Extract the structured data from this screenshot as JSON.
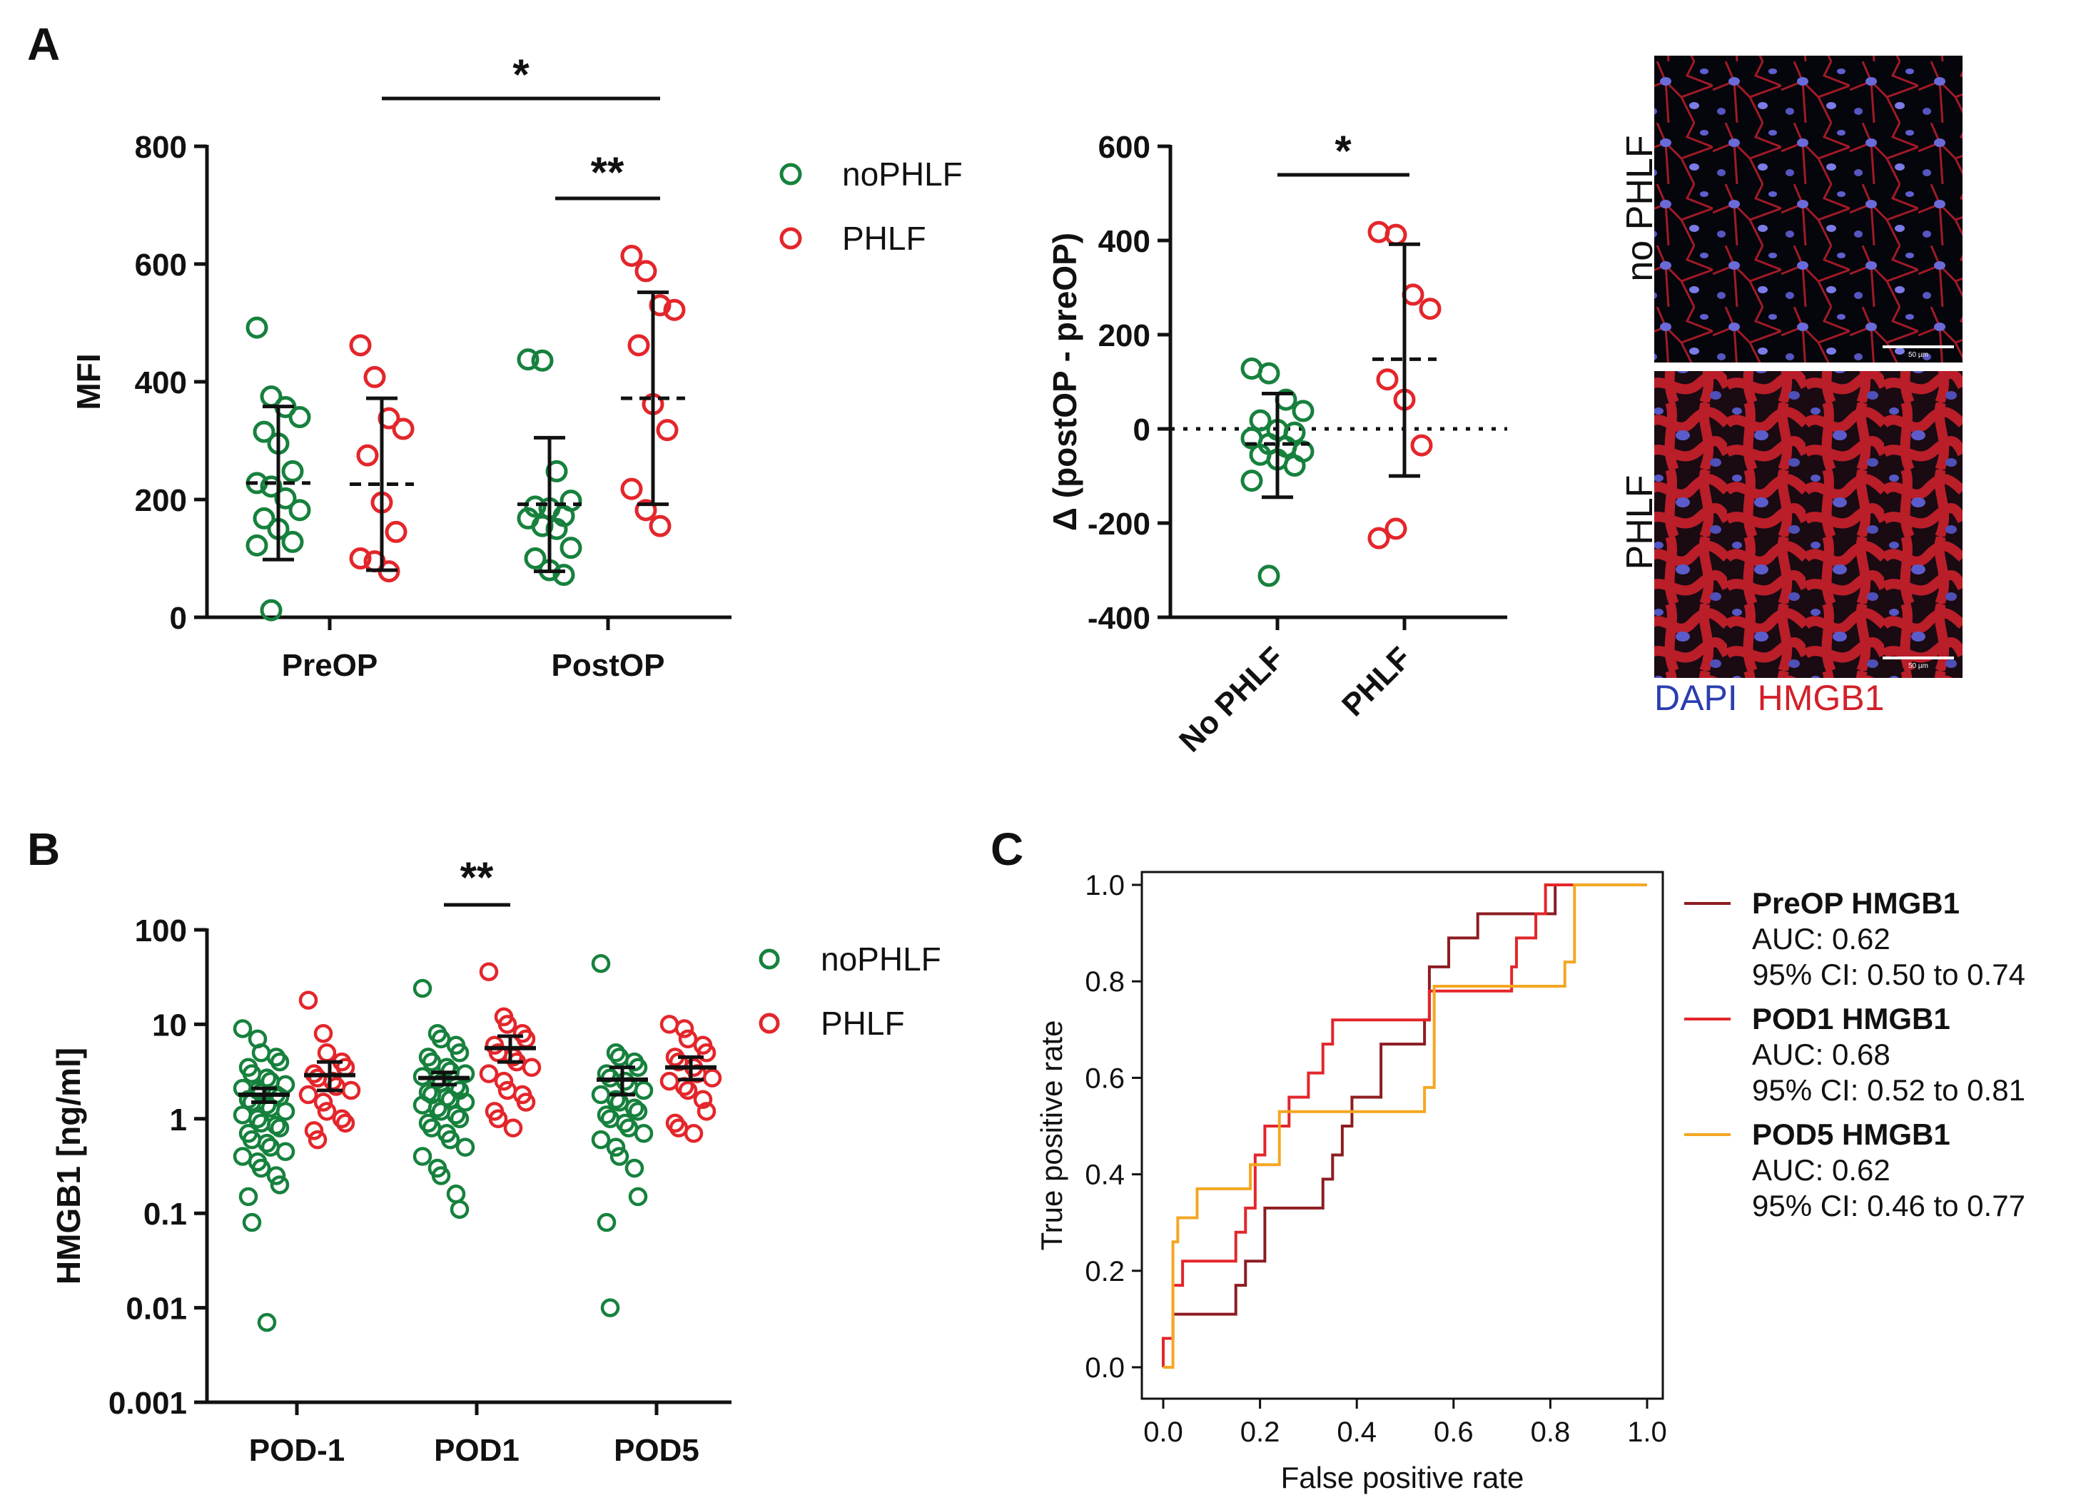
{
  "colors": {
    "green": "#16813d",
    "red": "#e3262b",
    "black": "#111111",
    "roc_preop": "#8c1d22",
    "roc_pod1": "#e3262b",
    "roc_pod5": "#f4a722",
    "dapi": "#2b3eb0",
    "hmgb1": "#d3202a"
  },
  "panels": {
    "a": "A",
    "b": "B",
    "c": "C"
  },
  "chart_data": [
    {
      "id": "a-mfi",
      "type": "scatter",
      "ylabel": "MFI",
      "ylim": [
        0,
        800
      ],
      "yticks": [
        "0",
        "200",
        "400",
        "600",
        "800"
      ],
      "categories": [
        "PreOP",
        "PostOP"
      ],
      "legend": [
        "noPHLF",
        "PHLF"
      ],
      "legend_position": "right",
      "series": [
        {
          "name": "noPHLF",
          "group": "PreOP",
          "mean": 228,
          "sd_low": 98,
          "sd_high": 358,
          "values": [
            492,
            375,
            357,
            340,
            315,
            295,
            248,
            228,
            222,
            202,
            182,
            168,
            150,
            128,
            122,
            12
          ]
        },
        {
          "name": "PHLF",
          "group": "PreOP",
          "mean": 226,
          "sd_low": 80,
          "sd_high": 372,
          "values": [
            462,
            408,
            338,
            320,
            275,
            195,
            145,
            100,
            95,
            78
          ]
        },
        {
          "name": "noPHLF",
          "group": "PostOP",
          "mean": 192,
          "sd_low": 78,
          "sd_high": 305,
          "values": [
            438,
            436,
            248,
            198,
            188,
            185,
            172,
            168,
            155,
            150,
            118,
            100,
            80,
            72
          ]
        },
        {
          "name": "PHLF",
          "group": "PostOP",
          "mean": 372,
          "sd_low": 192,
          "sd_high": 552,
          "values": [
            614,
            588,
            530,
            522,
            462,
            362,
            318,
            218,
            182,
            155
          ]
        }
      ],
      "significance": [
        {
          "label": "*",
          "from": "PreOP (PHLF)",
          "to": "PostOP (PHLF)"
        },
        {
          "label": "**",
          "from": "PostOP (noPHLF)",
          "to": "PostOP (PHLF)"
        }
      ]
    },
    {
      "id": "a-delta",
      "type": "scatter",
      "ylabel": "Δ (postOP - preOP)",
      "ylim": [
        -400,
        600
      ],
      "yticks": [
        "-400",
        "-200",
        "0",
        "200",
        "400",
        "600"
      ],
      "categories": [
        "No PHLF",
        "PHLF"
      ],
      "series": [
        {
          "name": "No PHLF",
          "mean": -32,
          "sd_low": -145,
          "sd_high": 75,
          "values": [
            128,
            118,
            62,
            38,
            18,
            -2,
            -8,
            -20,
            -32,
            -38,
            -48,
            -55,
            -65,
            -78,
            -110,
            -312
          ]
        },
        {
          "name": "PHLF",
          "mean": 148,
          "sd_low": -100,
          "sd_high": 392,
          "values": [
            418,
            412,
            285,
            255,
            105,
            62,
            -35,
            -232,
            -212
          ]
        }
      ],
      "reference_line": 0,
      "significance": [
        {
          "label": "*",
          "from": "No PHLF",
          "to": "PHLF"
        }
      ]
    },
    {
      "id": "b-hmgb1",
      "type": "scatter",
      "ylabel": "HMGB1 [ng/ml]",
      "yscale": "log",
      "ylim": [
        0.001,
        100
      ],
      "yticks": [
        "0.001",
        "0.01",
        "0.1",
        "1",
        "10",
        "100"
      ],
      "categories": [
        "POD-1",
        "POD1",
        "POD5"
      ],
      "legend": [
        "noPHLF",
        "PHLF"
      ],
      "legend_position": "right",
      "series": [
        {
          "name": "noPHLF",
          "group": "POD-1",
          "mean": 1.8,
          "sem_low": 1.5,
          "sem_high": 2.1,
          "values": [
            9,
            7,
            5,
            4.5,
            4,
            3.5,
            3,
            2.7,
            2.5,
            2.3,
            2.1,
            2,
            1.9,
            1.8,
            1.7,
            1.6,
            1.5,
            1.4,
            1.3,
            1.2,
            1.1,
            1,
            0.9,
            0.85,
            0.8,
            0.7,
            0.6,
            0.55,
            0.5,
            0.45,
            0.4,
            0.35,
            0.3,
            0.25,
            0.2,
            0.15,
            0.08,
            0.007
          ]
        },
        {
          "name": "PHLF",
          "group": "POD-1",
          "mean": 2.9,
          "sem_low": 2.0,
          "sem_high": 4.0,
          "values": [
            18,
            8,
            5,
            4,
            3.5,
            3,
            2.7,
            2.5,
            2.2,
            2,
            1.8,
            1.5,
            1.2,
            1,
            0.9,
            0.75,
            0.6
          ]
        },
        {
          "name": "noPHLF",
          "group": "POD1",
          "mean": 2.7,
          "sem_low": 2.3,
          "sem_high": 3.1,
          "values": [
            24,
            8,
            7,
            6,
            5,
            4.5,
            4,
            3.5,
            3.2,
            3,
            2.8,
            2.6,
            2.4,
            2.2,
            2,
            1.9,
            1.8,
            1.7,
            1.6,
            1.5,
            1.4,
            1.3,
            1.2,
            1.1,
            1,
            0.9,
            0.8,
            0.7,
            0.6,
            0.5,
            0.4,
            0.3,
            0.25,
            0.16,
            0.11
          ]
        },
        {
          "name": "PHLF",
          "group": "POD1",
          "mean": 5.6,
          "sem_low": 4.0,
          "sem_high": 7.5,
          "values": [
            36,
            12,
            10,
            8,
            7,
            6,
            5,
            4.5,
            4,
            3.5,
            3,
            2.5,
            2,
            1.8,
            1.5,
            1.2,
            1,
            0.8
          ]
        },
        {
          "name": "noPHLF",
          "group": "POD5",
          "mean": 2.6,
          "sem_low": 1.8,
          "sem_high": 3.5,
          "values": [
            44,
            5,
            4.5,
            4,
            3.5,
            3,
            2.7,
            2.5,
            2.2,
            2,
            1.8,
            1.6,
            1.5,
            1.3,
            1.2,
            1.1,
            1,
            0.9,
            0.8,
            0.7,
            0.6,
            0.5,
            0.4,
            0.3,
            0.15,
            0.08,
            0.01
          ]
        },
        {
          "name": "PHLF",
          "group": "POD5",
          "mean": 3.5,
          "sem_low": 2.6,
          "sem_high": 4.5,
          "values": [
            10,
            9,
            7,
            6,
            5,
            4.5,
            4,
            3.5,
            3,
            2.7,
            2.5,
            2.2,
            2,
            1.6,
            1.2,
            0.9,
            0.8,
            0.7
          ]
        }
      ],
      "significance": [
        {
          "label": "**",
          "from": "POD1 (noPHLF)",
          "to": "POD1 (PHLF)"
        }
      ]
    },
    {
      "id": "c-roc",
      "type": "line",
      "xlabel": "False positive rate",
      "ylabel": "True positive rate",
      "xlim": [
        0,
        1
      ],
      "ylim": [
        0,
        1
      ],
      "xticks": [
        "0.0",
        "0.2",
        "0.4",
        "0.6",
        "0.8",
        "1.0"
      ],
      "yticks": [
        "0.0",
        "0.2",
        "0.4",
        "0.6",
        "0.8",
        "1.0"
      ],
      "legend_position": "right",
      "series": [
        {
          "name": "PreOP HMGB1",
          "auc": "AUC: 0.62",
          "ci": "95% CI: 0.50 to 0.74",
          "x": [
            0,
            0,
            0.02,
            0.02,
            0.15,
            0.15,
            0.17,
            0.17,
            0.21,
            0.21,
            0.33,
            0.33,
            0.35,
            0.35,
            0.37,
            0.37,
            0.39,
            0.39,
            0.45,
            0.45,
            0.54,
            0.54,
            0.55,
            0.55,
            0.59,
            0.59,
            0.65,
            0.65,
            0.73,
            0.73,
            0.81,
            0.81,
            1.0
          ],
          "y": [
            0,
            0.06,
            0.06,
            0.11,
            0.11,
            0.17,
            0.17,
            0.22,
            0.22,
            0.33,
            0.33,
            0.39,
            0.39,
            0.44,
            0.44,
            0.5,
            0.5,
            0.56,
            0.56,
            0.67,
            0.67,
            0.72,
            0.72,
            0.83,
            0.83,
            0.89,
            0.89,
            0.94,
            0.94,
            0.94,
            0.94,
            1.0,
            1.0
          ]
        },
        {
          "name": "POD1 HMGB1",
          "auc": "AUC: 0.68",
          "ci": "95% CI: 0.52 to 0.81",
          "x": [
            0,
            0,
            0.02,
            0.02,
            0.04,
            0.04,
            0.15,
            0.15,
            0.17,
            0.17,
            0.19,
            0.19,
            0.21,
            0.21,
            0.26,
            0.26,
            0.3,
            0.3,
            0.33,
            0.33,
            0.35,
            0.35,
            0.4,
            0.4,
            0.55,
            0.55,
            0.72,
            0.72,
            0.73,
            0.73,
            0.77,
            0.77,
            0.79,
            0.79,
            0.85,
            0.85,
            1.0
          ],
          "y": [
            0,
            0.06,
            0.06,
            0.17,
            0.17,
            0.22,
            0.22,
            0.28,
            0.28,
            0.33,
            0.33,
            0.44,
            0.44,
            0.5,
            0.5,
            0.56,
            0.56,
            0.61,
            0.61,
            0.67,
            0.67,
            0.72,
            0.72,
            0.72,
            0.72,
            0.78,
            0.78,
            0.83,
            0.83,
            0.89,
            0.89,
            0.94,
            0.94,
            1.0,
            1.0,
            1.0,
            1.0
          ]
        },
        {
          "name": "POD5 HMGB1",
          "auc": "AUC: 0.62",
          "ci": "95% CI: 0.46 to 0.77",
          "x": [
            0,
            0.02,
            0.02,
            0.03,
            0.03,
            0.07,
            0.07,
            0.18,
            0.18,
            0.24,
            0.24,
            0.54,
            0.54,
            0.56,
            0.56,
            0.83,
            0.83,
            0.85,
            0.85,
            1.0
          ],
          "y": [
            0,
            0,
            0.26,
            0.26,
            0.31,
            0.31,
            0.37,
            0.37,
            0.42,
            0.42,
            0.53,
            0.53,
            0.58,
            0.58,
            0.79,
            0.79,
            0.84,
            0.84,
            1.0,
            1.0
          ]
        }
      ]
    }
  ],
  "images": {
    "no_phlf_label": "no PHLF",
    "phlf_label": "PHLF",
    "scale_label": "50 µm",
    "stain_dapi": "DAPI",
    "stain_hmgb1": "HMGB1"
  }
}
